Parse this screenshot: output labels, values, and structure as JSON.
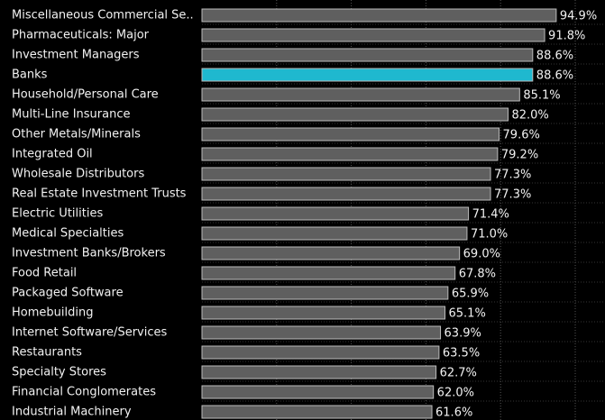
{
  "chart_data": {
    "type": "barh",
    "categories": [
      "Miscellaneous Commercial Se..",
      "Pharmaceuticals: Major",
      "Investment Managers",
      "Banks",
      "Household/Personal Care",
      "Multi-Line Insurance",
      "Other Metals/Minerals",
      "Integrated Oil",
      "Wholesale Distributors",
      "Real Estate Investment Trusts",
      "Electric Utilities",
      "Medical Specialties",
      "Investment Banks/Brokers",
      "Food Retail",
      "Packaged Software",
      "Homebuilding",
      "Internet Software/Services",
      "Restaurants",
      "Specialty Stores",
      "Financial Conglomerates",
      "Industrial Machinery"
    ],
    "values": [
      94.9,
      91.8,
      88.6,
      88.6,
      85.1,
      82.0,
      79.6,
      79.2,
      77.3,
      77.3,
      71.4,
      71.0,
      69.0,
      67.8,
      65.9,
      65.1,
      63.9,
      63.5,
      62.7,
      62.0,
      61.6
    ],
    "value_labels": [
      "94.9%",
      "91.8%",
      "88.6%",
      "88.6%",
      "85.1%",
      "82.0%",
      "79.6%",
      "79.2%",
      "77.3%",
      "77.3%",
      "71.4%",
      "71.0%",
      "69.0%",
      "67.8%",
      "65.9%",
      "65.1%",
      "63.9%",
      "63.5%",
      "62.7%",
      "62.0%",
      "61.6%"
    ],
    "colors": [
      "#5f5f5f",
      "#5f5f5f",
      "#5f5f5f",
      "#1fb8cf",
      "#5f5f5f",
      "#5f5f5f",
      "#5f5f5f",
      "#5f5f5f",
      "#5f5f5f",
      "#5f5f5f",
      "#5f5f5f",
      "#5f5f5f",
      "#5f5f5f",
      "#5f5f5f",
      "#5f5f5f",
      "#5f5f5f",
      "#5f5f5f",
      "#5f5f5f",
      "#5f5f5f",
      "#5f5f5f",
      "#5f5f5f"
    ],
    "xlim": [
      0,
      100
    ],
    "xticks": [
      20,
      40,
      60,
      80,
      100
    ],
    "grid": true
  }
}
